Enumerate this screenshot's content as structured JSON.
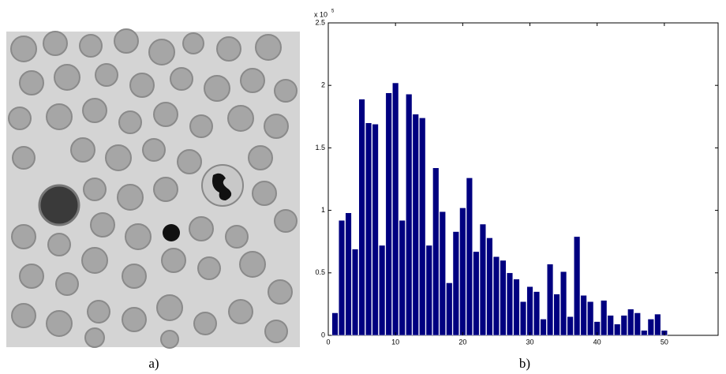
{
  "panel_a_label": "a)",
  "panel_b_label": "b)",
  "chart_data": {
    "type": "bar",
    "y_multiplier": "x 10",
    "y_exponent": "5",
    "x": [
      1,
      2,
      3,
      4,
      5,
      6,
      7,
      8,
      9,
      10,
      11,
      12,
      13,
      14,
      15,
      16,
      17,
      18,
      19,
      20,
      21,
      22,
      23,
      24,
      25,
      26,
      27,
      28,
      29,
      30,
      31,
      32,
      33,
      34,
      35,
      36,
      37,
      38,
      39,
      40,
      41,
      42,
      43,
      44,
      45,
      46,
      47,
      48,
      49,
      50
    ],
    "values": [
      0.18,
      0.92,
      0.98,
      0.69,
      1.89,
      1.7,
      1.69,
      0.72,
      1.94,
      2.02,
      0.92,
      1.93,
      1.77,
      1.74,
      0.72,
      1.34,
      0.99,
      0.42,
      0.83,
      1.02,
      1.26,
      0.67,
      0.89,
      0.78,
      0.63,
      0.6,
      0.5,
      0.45,
      0.27,
      0.39,
      0.35,
      0.13,
      0.57,
      0.33,
      0.51,
      0.15,
      0.79,
      0.32,
      0.27,
      0.11,
      0.28,
      0.16,
      0.09,
      0.16,
      0.21,
      0.18,
      0.04,
      0.13,
      0.17,
      0.04
    ],
    "color": "#000080",
    "xlim": [
      0,
      58
    ],
    "xticks": [
      0,
      10,
      20,
      30,
      40,
      50
    ],
    "ylim": [
      0,
      2.5
    ],
    "yticks": [
      0,
      0.5,
      1,
      1.5,
      2,
      2.5
    ]
  }
}
